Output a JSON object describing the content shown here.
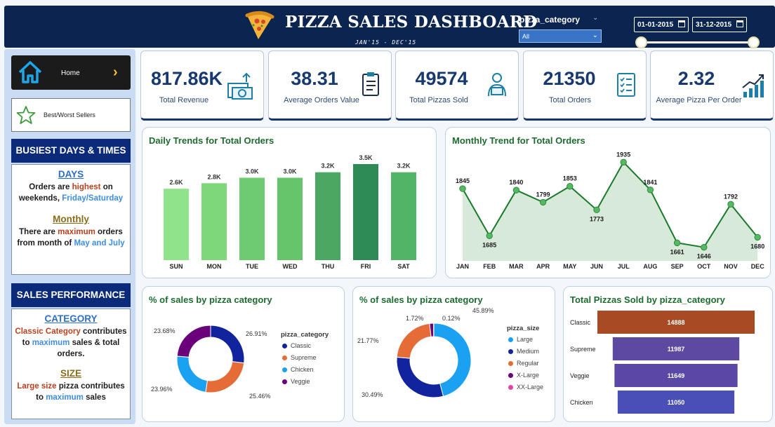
{
  "header": {
    "title": "PIZZA SALES DASHBOARD",
    "subtitle": "JAN'15 - DEC'15",
    "slicer_label": "pizza_category",
    "slicer_value": "All",
    "date_start": "01-01-2015",
    "date_end": "31-12-2015"
  },
  "sidebar": {
    "home_label": "Home",
    "best_label": "Best/Worst Sellers",
    "busiest": {
      "title": "BUSIEST DAYS & TIMES",
      "days_title": "DAYS",
      "days_t1": "Orders are ",
      "days_t2": "highest",
      "days_t3": " on weekends, ",
      "days_t4": "Friday/Saturday",
      "monthly_title": "Monthly",
      "monthly_t1": "There are ",
      "monthly_t2": "maximum",
      "monthly_t3": " orders from month of ",
      "monthly_t4": "May and July"
    },
    "performance": {
      "title": "SALES PERFORMANCE",
      "cat_title": "CATEGORY",
      "cat_t1": "Classic Category",
      "cat_t2": " contributes to ",
      "cat_t3": "maximum",
      "cat_t4": " sales & total orders.",
      "size_title": "SIZE",
      "size_t1": "Large size",
      "size_t2": " pizza contributes to ",
      "size_t3": "maximum",
      "size_t4": " sales"
    }
  },
  "kpis": [
    {
      "value": "817.86K",
      "label": "Total Revenue",
      "icon": "money-icon"
    },
    {
      "value": "38.31",
      "label": "Average Orders Value",
      "icon": "clipboard-icon"
    },
    {
      "value": "49574",
      "label": "Total Pizzas Sold",
      "icon": "delivery-icon"
    },
    {
      "value": "21350",
      "label": "Total Orders",
      "icon": "checklist-icon"
    },
    {
      "value": "2.32",
      "label": "Average Pizza Per Order",
      "icon": "growth-icon"
    }
  ],
  "chart_data": [
    {
      "type": "bar",
      "title": "Daily Trends for Total Orders",
      "categories": [
        "SUN",
        "MON",
        "TUE",
        "WED",
        "THU",
        "FRI",
        "SAT"
      ],
      "values": [
        2600,
        2800,
        3000,
        3000,
        3200,
        3500,
        3200
      ],
      "labels": [
        "2.6K",
        "2.8K",
        "3.0K",
        "3.0K",
        "3.2K",
        "3.5K",
        "3.2K"
      ],
      "colors": [
        "#90e38a",
        "#7fd77c",
        "#6fcb72",
        "#66c46b",
        "#4aa862",
        "#2e8b55",
        "#52b467"
      ],
      "ylim": [
        0,
        3600
      ]
    },
    {
      "type": "area",
      "title": "Monthly Trend for Total Orders",
      "categories": [
        "JAN",
        "FEB",
        "MAR",
        "APR",
        "MAY",
        "JUN",
        "JUL",
        "AUG",
        "SEP",
        "OCT",
        "NOV",
        "DEC"
      ],
      "values": [
        1845,
        1685,
        1840,
        1799,
        1853,
        1773,
        1935,
        1841,
        1661,
        1646,
        1792,
        1680
      ],
      "ylim": [
        1600,
        1950
      ],
      "color": "#1a7a2c"
    },
    {
      "type": "pie",
      "title": "% of sales by pizza category",
      "legend_title": "pizza_category",
      "labels": [
        "Classic",
        "Supreme",
        "Chicken",
        "Veggie"
      ],
      "values": [
        26.91,
        25.46,
        23.96,
        23.68
      ],
      "value_labels": [
        "26.91%",
        "25.46%",
        "23.96%",
        "23.68%"
      ],
      "colors": [
        "#12239e",
        "#e66c37",
        "#1aa1f1",
        "#6b007b"
      ]
    },
    {
      "type": "pie",
      "title": "% of sales by pizza category",
      "legend_title": "pizza_size",
      "labels": [
        "Large",
        "Medium",
        "Regular",
        "X-Large",
        "XX-Large"
      ],
      "values": [
        45.89,
        30.49,
        21.77,
        1.72,
        0.12
      ],
      "value_labels": [
        "45.89%",
        "30.49%",
        "21.77%",
        "1.72%",
        "0.12%"
      ],
      "colors": [
        "#1aa1f1",
        "#12239e",
        "#e66c37",
        "#6b007b",
        "#e044a7"
      ]
    },
    {
      "type": "bar",
      "orientation": "funnel",
      "title": "Total Pizzas Sold by pizza_category",
      "categories": [
        "Classic",
        "Supreme",
        "Veggie",
        "Chicken"
      ],
      "values": [
        14888,
        11987,
        11649,
        11050
      ],
      "colors": [
        "#a84b24",
        "#5d4aa0",
        "#5a47a6",
        "#4a4fb8"
      ]
    }
  ]
}
